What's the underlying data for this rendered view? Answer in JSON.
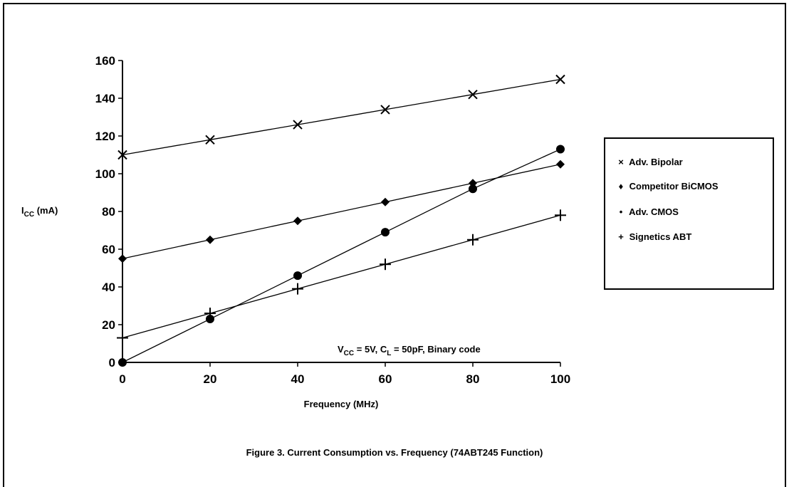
{
  "chart_data": {
    "type": "line",
    "title": "Figure 3.  Current Consumption vs. Frequency (74ABT245 Function)",
    "xlabel": "Frequency (MHz)",
    "ylabel": "I",
    "ylabel_sub": "CC",
    "ylabel_unit": " (mA)",
    "xlim": [
      0,
      100
    ],
    "ylim": [
      0,
      160
    ],
    "x_ticks": [
      "0",
      "20",
      "40",
      "60",
      "80",
      "100"
    ],
    "y_ticks": [
      "0",
      "20",
      "40",
      "60",
      "80",
      "100",
      "120",
      "140",
      "160"
    ],
    "grid": false,
    "legend_position": "right",
    "annotation": {
      "p1": "V",
      "s1": "CC",
      "p2": " = 5V, C",
      "s2": "L",
      "p3": " = 50pF, Binary code"
    },
    "series": [
      {
        "name": "Adv. Bipolar",
        "marker": "x",
        "legend_symbol": "×",
        "x": [
          0,
          20,
          40,
          60,
          80,
          100
        ],
        "y": [
          110,
          118,
          126,
          134,
          142,
          150
        ]
      },
      {
        "name": "Competitor BiCMOS",
        "marker": "diamond",
        "legend_symbol": "♦",
        "x": [
          0,
          20,
          40,
          60,
          80,
          100
        ],
        "y": [
          55,
          65,
          75,
          85,
          95,
          105
        ]
      },
      {
        "name": "Adv. CMOS",
        "marker": "circle",
        "legend_symbol": "•",
        "x": [
          0,
          20,
          40,
          60,
          80,
          100
        ],
        "y": [
          0,
          23,
          46,
          69,
          92,
          113
        ]
      },
      {
        "name": "Signetics ABT",
        "marker": "plus",
        "legend_symbol": "+",
        "x": [
          0,
          20,
          40,
          60,
          80,
          100
        ],
        "y": [
          13,
          26,
          39,
          52,
          65,
          78
        ]
      }
    ]
  }
}
